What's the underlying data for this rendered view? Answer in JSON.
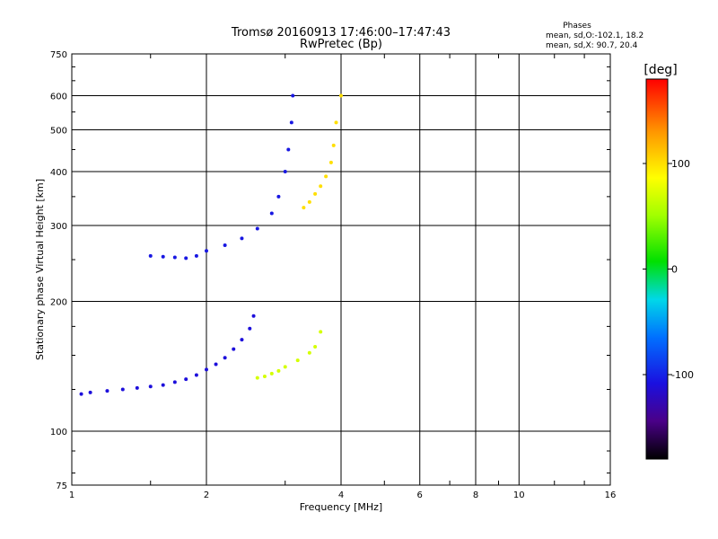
{
  "chart_data": {
    "type": "scatter",
    "title": "Tromsø 20160913 17:46:00–17:47:43",
    "subtitle": "RwPretec (Bp)",
    "stats": {
      "title": "Phases",
      "line1": "mean, sd,O:-102.1, 18.2",
      "line2": "mean, sd,X:  90.7, 20.4"
    },
    "xlabel": "Frequency [MHz]",
    "ylabel": "Stationary phase Virtual Height [km]",
    "x_scale": "log",
    "y_scale": "log",
    "xlim": [
      1,
      16
    ],
    "ylim": [
      75,
      750
    ],
    "x_ticks": [
      {
        "value": 1,
        "label": "1"
      },
      {
        "value": 2,
        "label": "2"
      },
      {
        "value": 4,
        "label": "4"
      },
      {
        "value": 6,
        "label": "6"
      },
      {
        "value": 8,
        "label": "8"
      },
      {
        "value": 10,
        "label": "10"
      },
      {
        "value": 16,
        "label": "16"
      }
    ],
    "y_ticks": [
      {
        "value": 75,
        "label": "75"
      },
      {
        "value": 100,
        "label": "100"
      },
      {
        "value": 200,
        "label": "200"
      },
      {
        "value": 300,
        "label": "300"
      },
      {
        "value": 400,
        "label": "400"
      },
      {
        "value": 500,
        "label": "500"
      },
      {
        "value": 600,
        "label": "600"
      },
      {
        "value": 750,
        "label": "750"
      }
    ],
    "grid": true,
    "colorbar": {
      "label": "[deg]",
      "min": -180,
      "max": 180,
      "ticks": [
        {
          "value": 100,
          "label": "100"
        },
        {
          "value": 0,
          "label": "0"
        },
        {
          "value": -100,
          "label": "-100"
        }
      ]
    },
    "series": [
      {
        "x": [
          1.05,
          1.1,
          1.2,
          1.3,
          1.4,
          1.5,
          1.6,
          1.7,
          1.8,
          1.9,
          2.0,
          2.1,
          2.2,
          2.3,
          2.4,
          2.5,
          2.55
        ],
        "y": [
          122,
          123,
          124,
          125,
          126,
          127,
          128,
          130,
          132,
          135,
          139,
          143,
          148,
          155,
          163,
          173,
          185
        ],
        "phase": -110
      },
      {
        "x": [
          1.5,
          1.6,
          1.7,
          1.8,
          1.9,
          2.0,
          2.2,
          2.4,
          2.6,
          2.8,
          2.9,
          3.0,
          3.05,
          3.1,
          3.12
        ],
        "y": [
          255,
          254,
          253,
          252,
          255,
          262,
          270,
          280,
          295,
          320,
          350,
          400,
          450,
          520,
          600
        ],
        "phase": -105
      },
      {
        "x": [
          2.6,
          2.7,
          2.8,
          2.9,
          3.0,
          3.2,
          3.4,
          3.5,
          3.6
        ],
        "y": [
          133,
          134,
          136,
          138,
          141,
          146,
          152,
          157,
          170
        ],
        "phase": 70
      },
      {
        "x": [
          3.3,
          3.4,
          3.5,
          3.6,
          3.7,
          3.8,
          3.85,
          3.9,
          4.0
        ],
        "y": [
          330,
          340,
          355,
          370,
          390,
          420,
          460,
          520,
          600
        ],
        "phase": 100
      }
    ]
  }
}
